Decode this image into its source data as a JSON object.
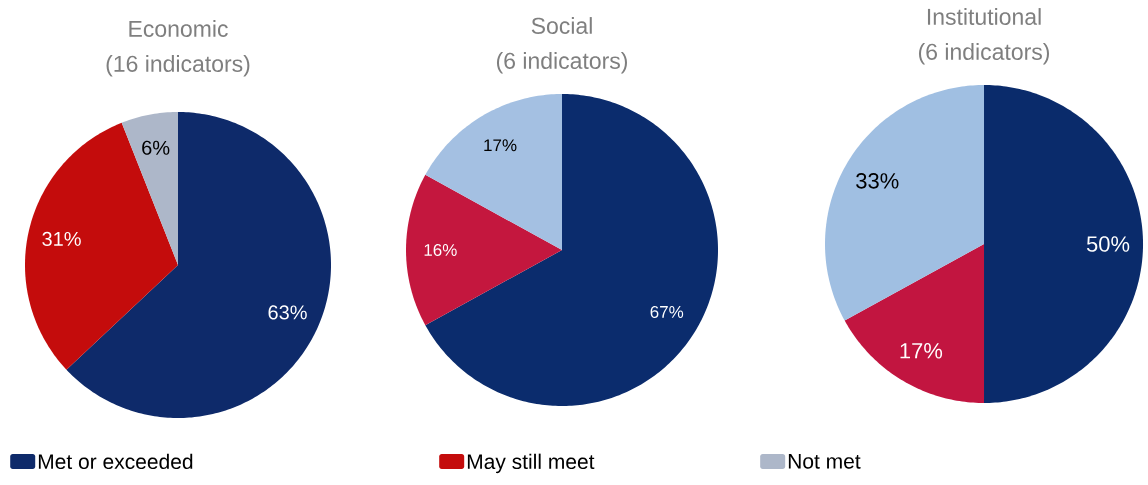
{
  "chart_data": [
    {
      "type": "pie",
      "title": "Economic",
      "subtitle": "(16 indicators)",
      "categories": [
        "Met or exceeded",
        "May still meet",
        "Not met"
      ],
      "values": [
        63,
        31,
        6
      ],
      "colors": [
        "#0e2a6a",
        "#c40c0c",
        "#adb7c9"
      ],
      "value_labels": [
        "63%",
        "31%",
        "6%"
      ],
      "legend": "bottom"
    },
    {
      "type": "pie",
      "title": "Social",
      "subtitle": "(6 indicators)",
      "values": [
        67,
        16,
        17
      ],
      "colors": [
        "#0b2c6d",
        "#c4173e",
        "#a4c0e2"
      ],
      "value_labels": [
        "67%",
        "16%",
        "17%"
      ]
    },
    {
      "type": "pie",
      "title": "Institutional",
      "subtitle": "(6 indicators)",
      "values": [
        50,
        17,
        33
      ],
      "colors": [
        "#0a2b6b",
        "#c21540",
        "#a0bfe2"
      ],
      "value_labels": [
        "50%",
        "17%",
        "33%"
      ]
    }
  ]
}
